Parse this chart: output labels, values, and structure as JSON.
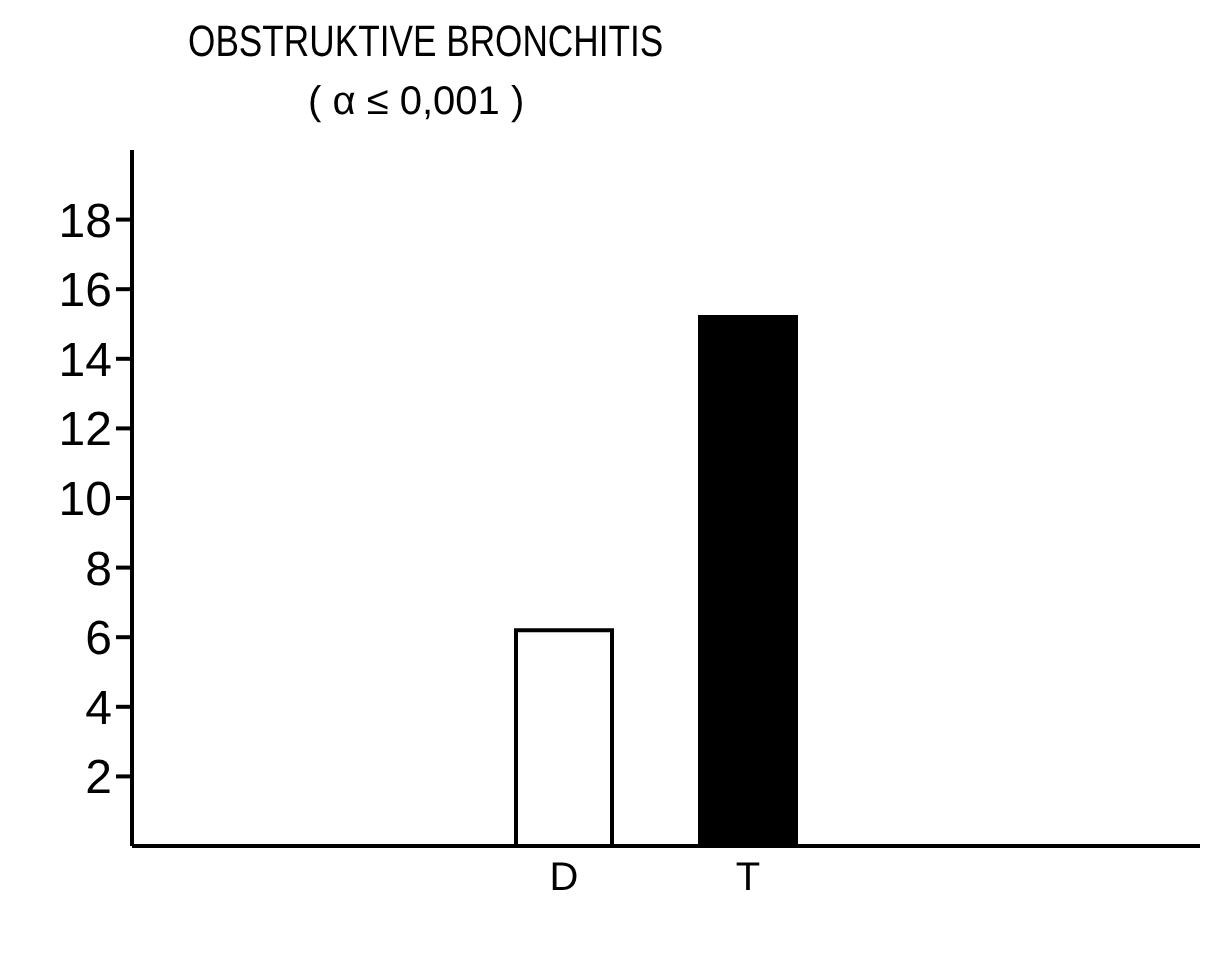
{
  "chart_data": {
    "type": "bar",
    "title": "OBSTRUKTIVE BRONCHITIS",
    "subtitle": "( α ≤ 0,001 )",
    "categories": [
      "D",
      "T"
    ],
    "values": [
      6.2,
      15.2
    ],
    "colors": [
      "#ffffff",
      "#000000"
    ],
    "ylim": [
      0,
      20
    ],
    "yticks": [
      2,
      4,
      6,
      8,
      10,
      12,
      14,
      16,
      18
    ],
    "grid": false,
    "legend": false
  }
}
